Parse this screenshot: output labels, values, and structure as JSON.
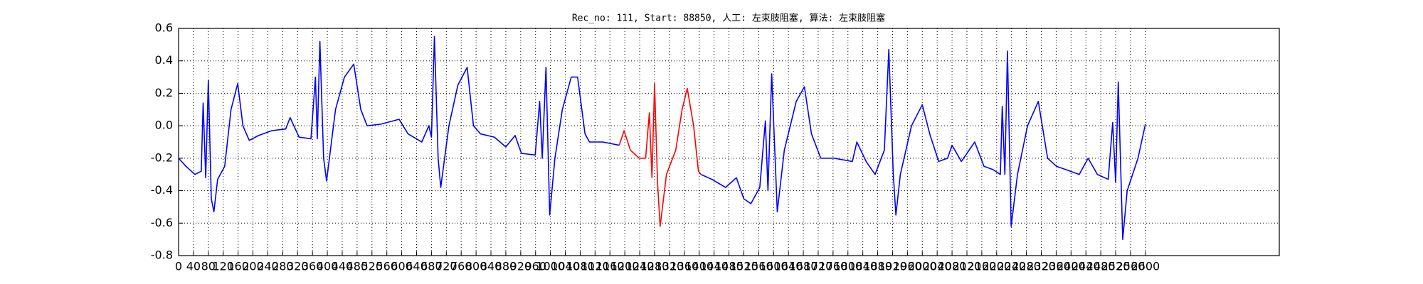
{
  "chart_data": {
    "type": "line",
    "title": "Rec_no: 111, Start: 88850, 人工: 左束肢阻塞, 算法: 左束肢阻塞",
    "x": [
      0,
      20,
      44,
      61,
      66,
      73,
      80,
      88,
      95,
      105,
      124,
      141,
      159,
      173,
      190,
      215,
      251,
      288,
      300,
      324,
      356,
      368,
      373,
      380,
      390,
      398,
      422,
      446,
      471,
      490,
      507,
      544,
      593,
      617,
      654,
      673,
      680,
      688,
      698,
      705,
      727,
      751,
      776,
      793,
      812,
      849,
      880,
      905,
      922,
      959,
      971,
      978,
      988,
      998,
      1012,
      1032,
      1056,
      1073,
      1093,
      1105,
      1141,
      1185,
      1198,
      1215,
      1239,
      1256,
      1266,
      1273,
      1280,
      1288,
      1295,
      1312,
      1337,
      1354,
      1368,
      1385,
      1398,
      1405,
      1434,
      1471,
      1500,
      1520,
      1539,
      1563,
      1578,
      1585,
      1595,
      1610,
      1629,
      1661,
      1683,
      1702,
      1727,
      1763,
      1812,
      1824,
      1849,
      1873,
      1898,
      1910,
      1922,
      1929,
      1941,
      1971,
      2000,
      2020,
      2044,
      2068,
      2080,
      2105,
      2141,
      2166,
      2190,
      2210,
      2215,
      2222,
      2229,
      2239,
      2256,
      2283,
      2312,
      2337,
      2361,
      2398,
      2422,
      2446,
      2471,
      2500,
      2512,
      2520,
      2527,
      2539,
      2551,
      2580,
      2600
    ],
    "series": [
      {
        "color": "#0000ff",
        "values": [
          -0.2,
          -0.25,
          -0.3,
          -0.28,
          0.14,
          -0.32,
          0.28,
          -0.45,
          -0.53,
          -0.33,
          -0.25,
          0.1,
          0.26,
          0.0,
          -0.09,
          -0.06,
          -0.03,
          -0.02,
          0.05,
          -0.07,
          -0.08,
          0.3,
          -0.08,
          0.52,
          -0.2,
          -0.34,
          0.1,
          0.3,
          0.38,
          0.1,
          0.0,
          0.01,
          0.04,
          -0.05,
          -0.1,
          0.0,
          -0.07,
          0.55,
          -0.2,
          -0.38,
          0.0,
          0.25,
          0.36,
          0.0,
          -0.05,
          -0.07,
          -0.13,
          -0.06,
          -0.17,
          -0.18,
          0.15,
          -0.2,
          0.36,
          -0.55,
          -0.2,
          0.1,
          0.3,
          0.3,
          -0.05,
          -0.1,
          -0.1,
          -0.12,
          null,
          null,
          null,
          null,
          null,
          null,
          null,
          null,
          null,
          null,
          null,
          null,
          null,
          null,
          null,
          -0.3,
          -0.33,
          -0.38,
          -0.32,
          -0.45,
          -0.48,
          -0.38,
          0.03,
          -0.4,
          0.32,
          -0.53,
          -0.15,
          0.15,
          0.24,
          -0.05,
          -0.2,
          -0.2,
          -0.22,
          -0.1,
          -0.22,
          -0.3,
          -0.15,
          0.47,
          -0.3,
          -0.55,
          -0.3,
          0.0,
          0.13,
          -0.05,
          -0.22,
          -0.2,
          -0.12,
          -0.22,
          -0.1,
          -0.25,
          -0.27,
          -0.3,
          0.12,
          -0.3,
          0.46,
          -0.62,
          -0.3,
          0.0,
          0.15,
          -0.2,
          -0.25,
          -0.28,
          -0.3,
          -0.2,
          -0.3,
          -0.33,
          0.02,
          -0.35,
          0.27,
          -0.7,
          -0.4,
          -0.2,
          0.01
        ]
      },
      {
        "color": "#ff0000",
        "values": [
          null,
          null,
          null,
          null,
          null,
          null,
          null,
          null,
          null,
          null,
          null,
          null,
          null,
          null,
          null,
          null,
          null,
          null,
          null,
          null,
          null,
          null,
          null,
          null,
          null,
          null,
          null,
          null,
          null,
          null,
          null,
          null,
          null,
          null,
          null,
          null,
          null,
          null,
          null,
          null,
          null,
          null,
          null,
          null,
          null,
          null,
          null,
          null,
          null,
          null,
          null,
          null,
          null,
          null,
          null,
          null,
          null,
          null,
          null,
          null,
          null,
          -0.12,
          -0.03,
          -0.15,
          -0.2,
          -0.2,
          0.08,
          -0.32,
          0.26,
          -0.35,
          -0.62,
          -0.3,
          -0.15,
          0.1,
          0.23,
          0.0,
          -0.28,
          -0.3,
          null,
          null,
          null,
          null,
          null,
          null,
          null,
          null,
          null,
          null,
          null,
          null,
          null,
          null,
          null,
          null,
          null,
          null,
          null,
          null,
          null,
          null,
          null,
          null,
          null,
          null,
          null,
          null,
          null,
          null,
          null,
          null,
          null,
          null,
          null,
          null,
          null,
          null,
          null,
          null,
          null,
          null,
          null,
          null,
          null,
          null,
          null,
          null,
          null,
          null,
          null,
          null,
          null,
          null,
          null,
          null,
          null
        ]
      }
    ],
    "xlim": [
      0,
      2960
    ],
    "xticks": [
      0,
      40,
      80,
      120,
      160,
      200,
      240,
      280,
      320,
      360,
      400,
      440,
      480,
      520,
      560,
      600,
      640,
      680,
      720,
      760,
      800,
      840,
      880,
      920,
      960,
      1000,
      1040,
      1080,
      1120,
      1160,
      1200,
      1240,
      1280,
      1320,
      1360,
      1400,
      1440,
      1480,
      1520,
      1560,
      1600,
      1640,
      1680,
      1720,
      1760,
      1800,
      1840,
      1880,
      1920,
      1960,
      2000,
      2040,
      2080,
      2120,
      2160,
      2200,
      2240,
      2280,
      2320,
      2360,
      2400,
      2440,
      2480,
      2520,
      2560,
      2600
    ],
    "ylim": [
      -0.8,
      0.6
    ],
    "yticks": [
      -0.8,
      -0.6,
      -0.4,
      -0.2,
      {
        "value": 0,
        "label": "0.0"
      },
      0.2,
      0.4,
      0.6
    ],
    "grid": true
  }
}
